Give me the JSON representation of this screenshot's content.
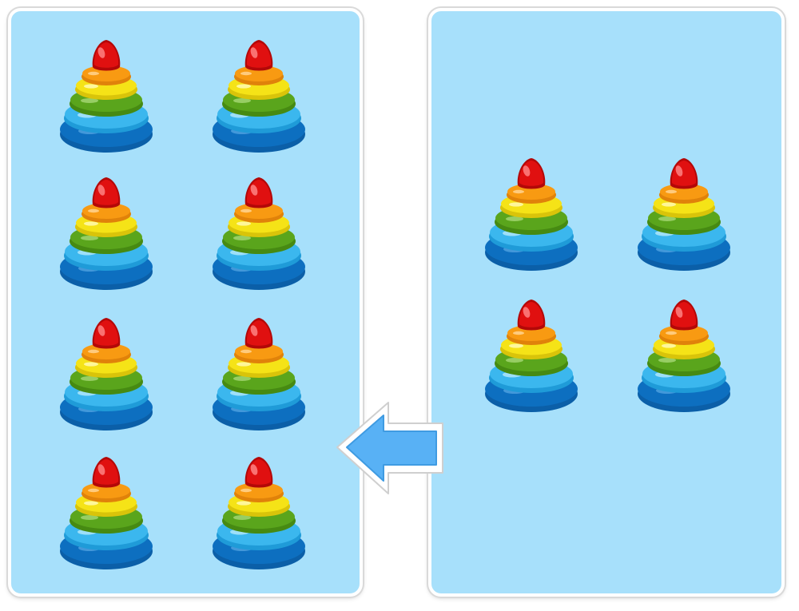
{
  "scene": {
    "background_color": "#ffffff",
    "panel_color": "#a7e0fb",
    "panel_border_color": "#ffffff"
  },
  "left_group": {
    "object": "rainbow-stacking-ring-toy",
    "count": 8
  },
  "right_group": {
    "object": "rainbow-stacking-ring-toy",
    "count": 4
  },
  "arrow": {
    "icon": "arrow-left-icon",
    "direction": "left",
    "fill_color": "#58b1f5",
    "outline_color": "#ffffff"
  },
  "toy_colors": {
    "cap": "#e01010",
    "ring_orange": "#f89a12",
    "ring_yellow": "#f5e317",
    "ring_green": "#5aa51c",
    "ring_light_blue": "#3bb7ee",
    "ring_dark_blue": "#0d6fc0"
  }
}
